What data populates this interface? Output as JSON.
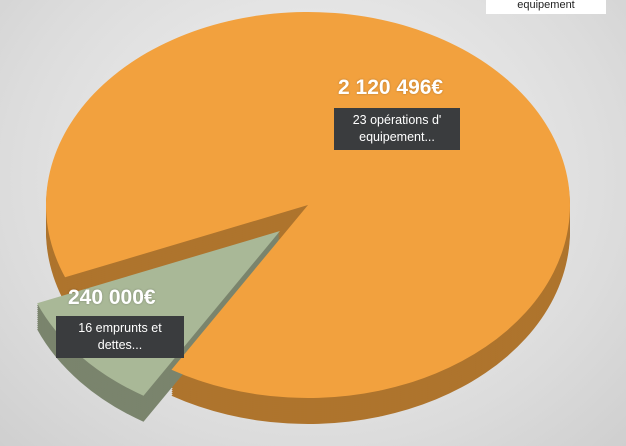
{
  "chart_data": {
    "type": "pie",
    "categories": [
      "23 opérations d' equipement...",
      "16 emprunts et dettes..."
    ],
    "values": [
      2120496,
      240000
    ],
    "value_labels": [
      "2 120 496€",
      "240 000€"
    ],
    "colors": [
      "#f2a13e",
      "#a9b897"
    ],
    "annotations": [
      "equipement"
    ]
  }
}
